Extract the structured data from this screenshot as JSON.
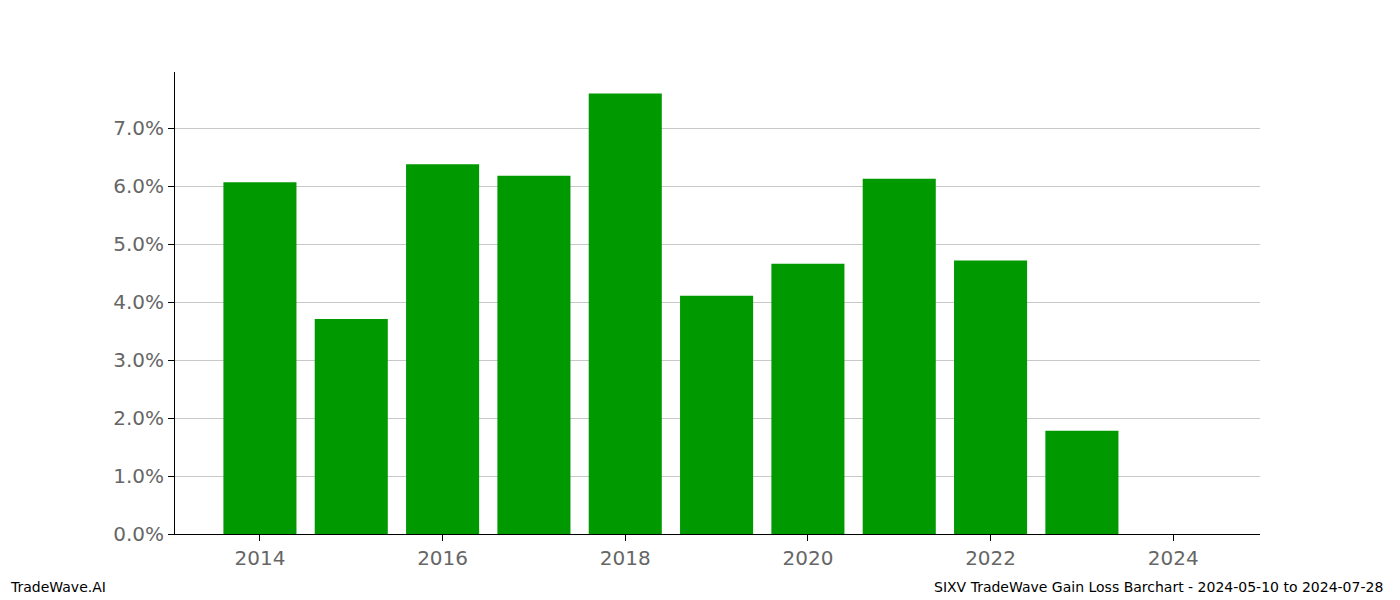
{
  "chart_data": {
    "type": "bar",
    "x": [
      2014,
      2015,
      2016,
      2017,
      2018,
      2019,
      2020,
      2021,
      2022,
      2023
    ],
    "values": [
      6.07,
      3.71,
      6.38,
      6.18,
      7.6,
      4.11,
      4.66,
      6.13,
      4.72,
      1.78
    ],
    "color": "#009900",
    "xlim": [
      2013.07,
      2024.95
    ],
    "xticks": [
      2014,
      2016,
      2018,
      2020,
      2022,
      2024
    ],
    "ylim": [
      0,
      7.97
    ],
    "yticks": [
      {
        "value": 0,
        "label": "0.0%"
      },
      {
        "value": 1,
        "label": "1.0%"
      },
      {
        "value": 2,
        "label": "2.0%"
      },
      {
        "value": 3,
        "label": "3.0%"
      },
      {
        "value": 4,
        "label": "4.0%"
      },
      {
        "value": 5,
        "label": "5.0%"
      },
      {
        "value": 6,
        "label": "6.0%"
      },
      {
        "value": 7,
        "label": "7.0%"
      }
    ],
    "grid": true,
    "annotations": [
      "TradeWave.AI",
      "SIXV TradeWave Gain Loss Barchart - 2024-05-10 to 2024-07-28"
    ]
  }
}
